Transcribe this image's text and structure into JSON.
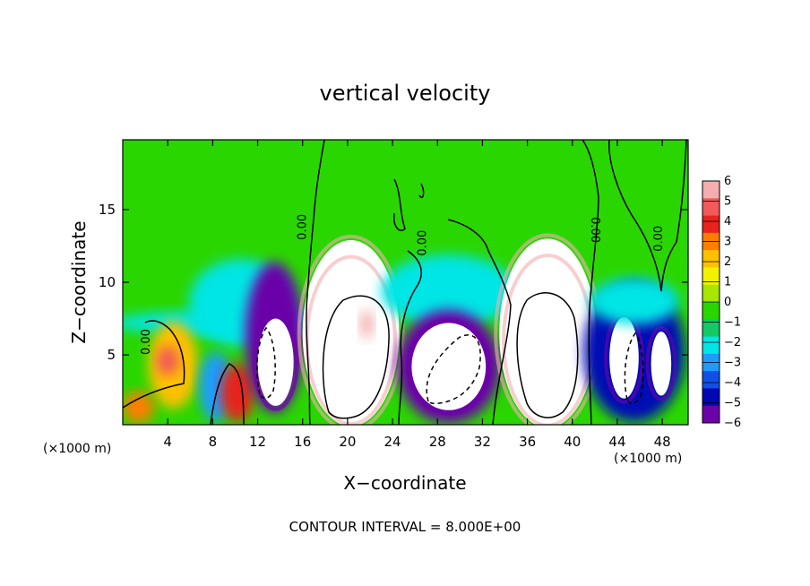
{
  "chart_data": {
    "type": "heatmap",
    "title": "vertical velocity",
    "xlabel": "X−coordinate",
    "ylabel": "Z−coordinate",
    "x_unit_left": "(×1000 m)",
    "x_unit_right": "(×1000 m)",
    "xlim": [
      0,
      50.3
    ],
    "ylim": [
      0.2,
      19.8
    ],
    "x_ticks": [
      4,
      8,
      12,
      16,
      20,
      24,
      28,
      32,
      36,
      40,
      44,
      48
    ],
    "y_ticks": [
      5,
      10,
      15
    ],
    "colorbar": {
      "range": [
        -6,
        6
      ],
      "tick_values": [
        6,
        5,
        4,
        3,
        2,
        1,
        0,
        -1,
        -2,
        -3,
        -4,
        -5,
        -6
      ],
      "tick_labels": [
        "6",
        "5",
        "4",
        "3",
        "2",
        "1",
        "0",
        "−1",
        "−2",
        "−3",
        "−4",
        "−5",
        "−6"
      ],
      "colors": [
        "#f4aeb0",
        "#f15a5a",
        "#e8231c",
        "#ff7d00",
        "#ffc000",
        "#f2f200",
        "#a6e600",
        "#2ad600",
        "#14c864",
        "#00e5e5",
        "#1e9bff",
        "#1050e8",
        "#0008b4",
        "#6a04a8"
      ]
    },
    "cells": [
      {
        "x": 10.0,
        "y": 7.2,
        "rx": 11.0,
        "ry": 0.9,
        "v": -2.2
      },
      {
        "x": 10.5,
        "y": 8.6,
        "rx": 4.6,
        "ry": 3.0,
        "v": -2.5
      },
      {
        "x": 4.5,
        "y": 4.3,
        "rx": 2.2,
        "ry": 3.0,
        "v": 2.4
      },
      {
        "x": 4.0,
        "y": 4.6,
        "rx": 1.0,
        "ry": 1.0,
        "v": 4.6
      },
      {
        "x": 1.4,
        "y": 1.4,
        "rx": 1.4,
        "ry": 1.1,
        "v": 3.2
      },
      {
        "x": 8.3,
        "y": 2.8,
        "rx": 1.5,
        "ry": 2.4,
        "v": -3.4
      },
      {
        "x": 10.2,
        "y": 2.4,
        "rx": 1.5,
        "ry": 2.0,
        "v": 3.6
      },
      {
        "x": 13.5,
        "y": 6.2,
        "rx": 2.6,
        "ry": 5.2,
        "v": -5.2
      },
      {
        "x": 13.6,
        "y": 4.5,
        "rx": 1.6,
        "ry": 3.0,
        "v": -9.0
      },
      {
        "x": 20.3,
        "y": 6.5,
        "rx": 4.3,
        "ry": 6.4,
        "v": 8.0
      },
      {
        "x": 20.3,
        "y": 6.0,
        "rx": 3.6,
        "ry": 5.5,
        "v": 12.0
      },
      {
        "x": 21.7,
        "y": 7.1,
        "rx": 0.6,
        "ry": 1.0,
        "v": 5.2
      },
      {
        "x": 29.0,
        "y": 9.4,
        "rx": 6.0,
        "ry": 2.5,
        "v": -2.3
      },
      {
        "x": 29.0,
        "y": 4.2,
        "rx": 4.6,
        "ry": 3.9,
        "v": -5.2
      },
      {
        "x": 29.0,
        "y": 4.2,
        "rx": 3.3,
        "ry": 3.0,
        "v": -9.0
      },
      {
        "x": 37.8,
        "y": 6.5,
        "rx": 4.3,
        "ry": 6.5,
        "v": 8.0
      },
      {
        "x": 37.8,
        "y": 6.0,
        "rx": 3.6,
        "ry": 5.6,
        "v": 12.0
      },
      {
        "x": 45.5,
        "y": 5.2,
        "rx": 4.5,
        "ry": 4.8,
        "v": -5.0
      },
      {
        "x": 44.6,
        "y": 4.8,
        "rx": 1.3,
        "ry": 2.8,
        "v": -9.0
      },
      {
        "x": 47.9,
        "y": 4.4,
        "rx": 0.9,
        "ry": 2.2,
        "v": -9.0
      },
      {
        "x": 45.5,
        "y": 8.7,
        "rx": 4.0,
        "ry": 1.6,
        "v": -2.2
      }
    ],
    "contour_labels": [
      {
        "text": "0.00",
        "x": 16.3,
        "y": 13.8,
        "rotate": -90
      },
      {
        "text": "0.00",
        "x": 2.4,
        "y": 5.9,
        "rotate": -90
      },
      {
        "text": "0.00",
        "x": 27.0,
        "y": 12.7,
        "rotate": -90
      },
      {
        "text": "0.00",
        "x": 41.7,
        "y": 13.6,
        "rotate": 90
      },
      {
        "text": "0.00",
        "x": 48.0,
        "y": 13.0,
        "rotate": -90
      }
    ],
    "footnote": "CONTOUR INTERVAL = 8.000E+00"
  }
}
